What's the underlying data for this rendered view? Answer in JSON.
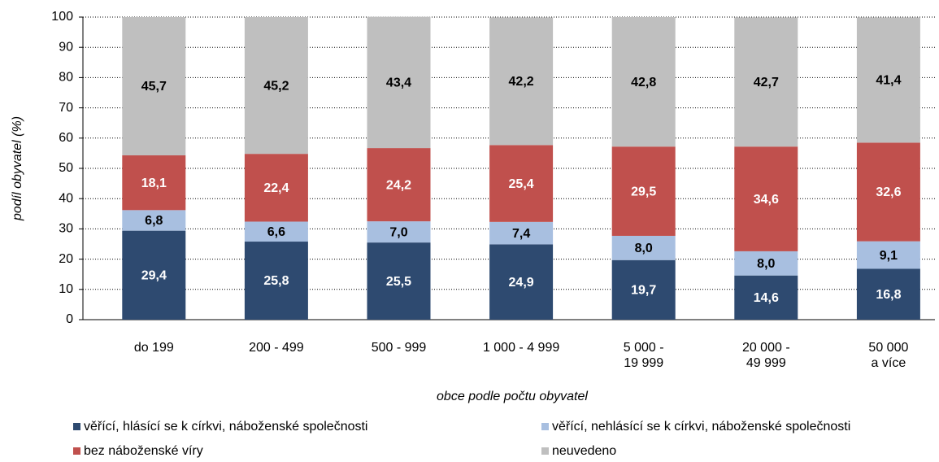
{
  "chart_data": {
    "type": "stacked_bar",
    "categories": [
      "do 199",
      "200 - 499",
      "500 - 999",
      "1 000 - 4 999",
      "5 000 -\n19 999",
      "20 000 -\n49 999",
      "50 000\na více"
    ],
    "series": [
      {
        "name": "věřící, hlásící se k církvi, náboženské společnosti",
        "color": "#2e4a70",
        "values": [
          29.4,
          25.8,
          25.5,
          24.9,
          19.7,
          14.6,
          16.8
        ],
        "value_labels": [
          "29,4",
          "25,8",
          "25,5",
          "24,9",
          "19,7",
          "14,6",
          "16,8"
        ]
      },
      {
        "name": "věřící, nehlásící se k církvi, náboženské společnosti",
        "color": "#a8bfe0",
        "values": [
          6.8,
          6.6,
          7.0,
          7.4,
          8.0,
          8.0,
          9.1
        ],
        "value_labels": [
          "6,8",
          "6,6",
          "7,0",
          "7,4",
          "8,0",
          "8,0",
          "9,1"
        ]
      },
      {
        "name": "bez náboženské víry",
        "color": "#c0504d",
        "values": [
          18.1,
          22.4,
          24.2,
          25.4,
          29.5,
          34.6,
          32.6
        ],
        "value_labels": [
          "18,1",
          "22,4",
          "24,2",
          "25,4",
          "29,5",
          "34,6",
          "32,6"
        ]
      },
      {
        "name": "neuvedeno",
        "color": "#bfbfbf",
        "values": [
          45.7,
          45.2,
          43.4,
          42.2,
          42.8,
          42.7,
          41.4
        ],
        "value_labels": [
          "45,7",
          "45,2",
          "43,4",
          "42,2",
          "42,8",
          "42,7",
          "41,4"
        ]
      }
    ],
    "xlabel": "obce podle počtu obyvatel",
    "ylabel": "podíl obyvatel (%)",
    "ylim": [
      0,
      100
    ],
    "yticks": [
      0,
      10,
      20,
      30,
      40,
      50,
      60,
      70,
      80,
      90,
      100
    ],
    "grid": true
  }
}
